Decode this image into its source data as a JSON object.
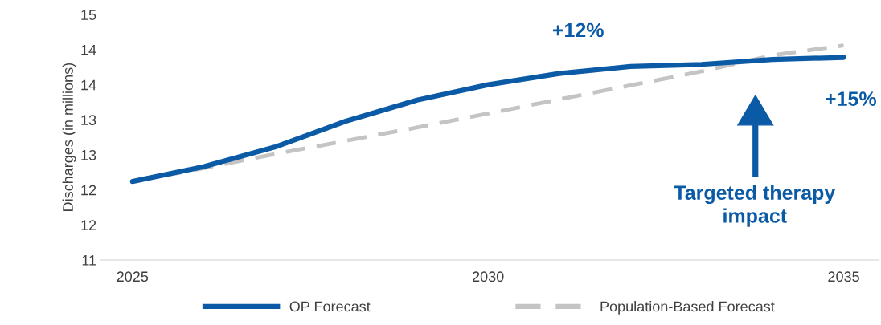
{
  "chart_data": {
    "type": "line",
    "ylabel": "Discharges (in millions)",
    "x": [
      2025,
      2026,
      2027,
      2028,
      2029,
      2030,
      2031,
      2032,
      2033,
      2034,
      2035
    ],
    "series": [
      {
        "name": "OP Forecast",
        "color": "#0b5aa6",
        "line_style": "solid",
        "values": [
          12.12,
          12.33,
          12.61,
          12.98,
          13.28,
          13.5,
          13.66,
          13.76,
          13.79,
          13.86,
          13.89
        ]
      },
      {
        "name": "Population-Based Forecast",
        "color": "#c4c4c4",
        "line_style": "dashed",
        "values": [
          12.12,
          12.31,
          12.51,
          12.7,
          12.89,
          13.09,
          13.29,
          13.49,
          13.69,
          13.92,
          14.06
        ]
      }
    ],
    "xlim": [
      2024.55,
      2035.5
    ],
    "xticks": [
      2025,
      2030,
      2035
    ],
    "ylim": [
      11,
      14.5
    ],
    "yticks": [
      11,
      {
        "value": 11.5,
        "label": "12"
      },
      12,
      {
        "value": 12.5,
        "label": "13"
      },
      13,
      {
        "value": 13.5,
        "label": "14"
      },
      14,
      {
        "value": 14.5,
        "label": "15"
      }
    ],
    "annotations": [
      "+12%",
      "+15%",
      "Targeted therapy impact"
    ],
    "grid": false,
    "legend": "bottom",
    "marker": "none"
  }
}
